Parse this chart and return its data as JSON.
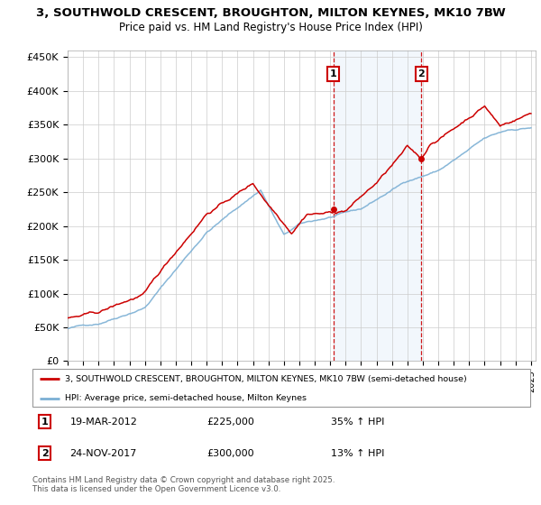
{
  "title_line1": "3, SOUTHWOLD CRESCENT, BROUGHTON, MILTON KEYNES, MK10 7BW",
  "title_line2": "Price paid vs. HM Land Registry's House Price Index (HPI)",
  "ylabel_ticks": [
    "£0",
    "£50K",
    "£100K",
    "£150K",
    "£200K",
    "£250K",
    "£300K",
    "£350K",
    "£400K",
    "£450K"
  ],
  "ytick_values": [
    0,
    50000,
    100000,
    150000,
    200000,
    250000,
    300000,
    350000,
    400000,
    450000
  ],
  "x_start_year": 1995,
  "x_end_year": 2025,
  "red_color": "#cc0000",
  "blue_color": "#7bafd4",
  "marker1_date": 2012.21,
  "marker1_price": 225000,
  "marker2_date": 2017.9,
  "marker2_price": 300000,
  "legend_line1": "3, SOUTHWOLD CRESCENT, BROUGHTON, MILTON KEYNES, MK10 7BW (semi-detached house)",
  "legend_line2": "HPI: Average price, semi-detached house, Milton Keynes",
  "marker1_text_date": "19-MAR-2012",
  "marker1_text_price": "£225,000",
  "marker1_text_hpi": "35% ↑ HPI",
  "marker2_text_date": "24-NOV-2017",
  "marker2_text_price": "£300,000",
  "marker2_text_hpi": "13% ↑ HPI",
  "footnote": "Contains HM Land Registry data © Crown copyright and database right 2025.\nThis data is licensed under the Open Government Licence v3.0.",
  "bg_color": "#ffffff",
  "grid_color": "#cccccc",
  "shade_color": "#ddeeff"
}
